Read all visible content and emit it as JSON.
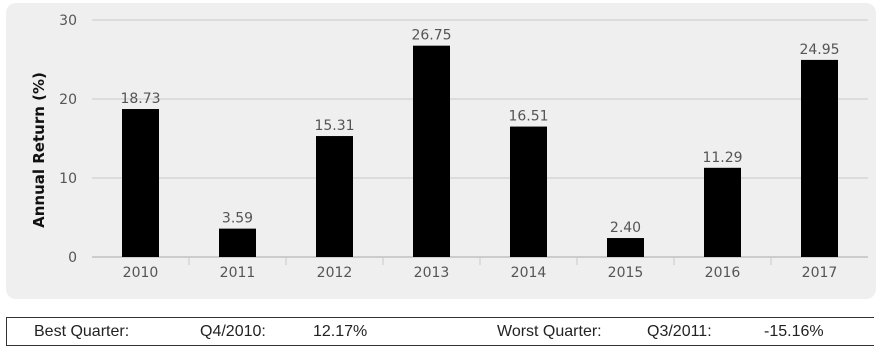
{
  "chart_data": {
    "type": "bar",
    "categories": [
      "2010",
      "2011",
      "2012",
      "2013",
      "2014",
      "2015",
      "2016",
      "2017"
    ],
    "values": [
      18.73,
      3.59,
      15.31,
      26.75,
      16.51,
      2.4,
      11.29,
      24.95
    ],
    "value_labels": [
      "18.73",
      "3.59",
      "15.31",
      "26.75",
      "16.51",
      "2.40",
      "11.29",
      "24.95"
    ],
    "ylabel": "Annual Return (%)",
    "ylim": [
      0,
      30
    ],
    "yticks": [
      0,
      10,
      20,
      30
    ],
    "grid": true,
    "bar_color": "#000000"
  },
  "stats": {
    "best_label": "Best Quarter:",
    "best_period": "Q4/2010:",
    "best_value": "12.17%",
    "worst_label": "Worst Quarter:",
    "worst_period": "Q3/2011:",
    "worst_value": "-15.16%"
  }
}
